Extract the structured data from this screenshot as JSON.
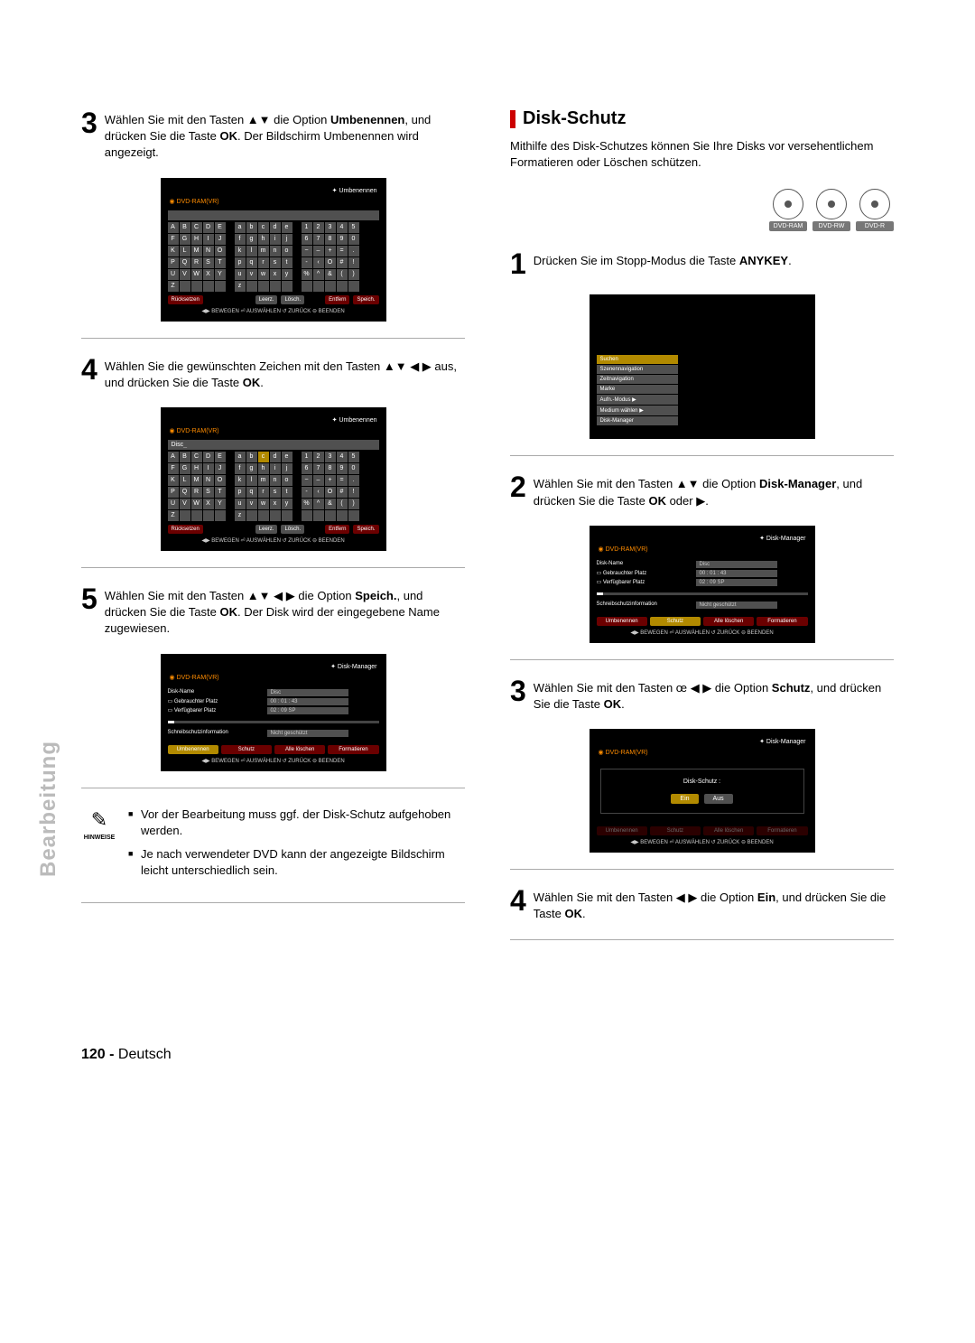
{
  "side_tab": "Bearbeitung",
  "page_footer": {
    "num": "120 -",
    "lang": "Deutsch"
  },
  "left": {
    "step3": {
      "num": "3",
      "text": "Wählen Sie mit den Tasten ▲▼ die Option <b>Umbenennen</b>, und drücken Sie die Taste <b>OK</b>. Der Bildschirm Umbenennen wird angezeigt."
    },
    "step4": {
      "num": "4",
      "text": "Wählen Sie die gewünschten Zeichen mit den Tasten ▲▼ ◀ ▶ aus, und drücken Sie die Taste <b>OK</b>."
    },
    "step5": {
      "num": "5",
      "text": "Wählen Sie mit den Tasten ▲▼ ◀ ▶ die Option <b>Speich.</b>, und drücken Sie die Taste <b>OK</b>. Der Disk wird der eingegebene Name zugewiesen."
    },
    "notes": {
      "label": "HINWEISE",
      "items": [
        "Vor der Bearbeitung muss ggf. der Disk-Schutz aufgehoben werden.",
        "Je nach verwendeter DVD kann der angezeigte Bildschirm leicht unterschiedlich sein."
      ]
    },
    "kb": {
      "title": "Umbenennen",
      "device": "DVD-RAM(VR)",
      "disc_label": "Disc",
      "caps": [
        "A",
        "B",
        "C",
        "D",
        "E",
        "F",
        "G",
        "H",
        "I",
        "J",
        "K",
        "L",
        "M",
        "N",
        "O",
        "P",
        "Q",
        "R",
        "S",
        "T",
        "U",
        "V",
        "W",
        "X",
        "Y",
        "Z",
        "",
        "",
        "",
        ""
      ],
      "low": [
        "a",
        "b",
        "c",
        "d",
        "e",
        "f",
        "g",
        "h",
        "i",
        "j",
        "k",
        "l",
        "m",
        "n",
        "o",
        "p",
        "q",
        "r",
        "s",
        "t",
        "u",
        "v",
        "w",
        "x",
        "y",
        "z",
        "",
        "",
        "",
        ""
      ],
      "num": [
        "1",
        "2",
        "3",
        "4",
        "5",
        "6",
        "7",
        "8",
        "9",
        "0",
        "~",
        "–",
        "+",
        "=",
        ".",
        "-",
        "‹",
        "O",
        "#",
        "!",
        "%",
        "^",
        "&",
        "(",
        ")",
        "",
        "",
        "",
        "",
        ""
      ],
      "btns": {
        "reset": "Rücksetzen",
        "space": "Leerz.",
        "delete": "Lösch.",
        "remove": "Entfern",
        "save": "Speich."
      },
      "help": "◀▶ BEWEGEN   ⏎ AUSWÄHLEN   ↺ ZURÜCK   ⊖ BEENDEN"
    },
    "dm": {
      "title": "Disk-Manager",
      "device": "DVD-RAM(VR)",
      "rows": {
        "name_lbl": "Disk-Name",
        "name_val": "Disc",
        "used_lbl": "Gebrauchter Platz",
        "used_val": "00 : 01 : 43",
        "avail_lbl": "Verfügbarer Platz",
        "avail_val": "02 : 09 SP",
        "prot_lbl": "Schreibschutzinformation",
        "prot_val": "Nicht geschützt"
      },
      "btns": {
        "rename": "Umbenennen",
        "protect": "Schutz",
        "delall": "Alle löschen",
        "format": "Formatieren"
      },
      "help": "◀▶ BEWEGEN   ⏎ AUSWÄHLEN   ↺ ZURÜCK   ⊖ BEENDEN"
    }
  },
  "right": {
    "heading": "Disk-Schutz",
    "intro": "Mithilfe des Disk-Schutzes können Sie Ihre Disks vor versehentlichem Formatieren oder Löschen schützen.",
    "discs": [
      "DVD-RAM",
      "DVD-RW",
      "DVD-R"
    ],
    "step1": {
      "num": "1",
      "text": "Drücken Sie im Stopp-Modus die Taste <b>ANYKEY</b>."
    },
    "menu": {
      "items": [
        "Suchen",
        "Szenennavigation",
        "Zeitnavigation",
        "Marke",
        "Aufn.-Modus",
        "Medium wählen",
        "Disk-Manager"
      ],
      "arrow_items": [
        4,
        5
      ]
    },
    "step2": {
      "num": "2",
      "text": "Wählen Sie mit den Tasten ▲▼ die Option <b>Disk-Manager</b>, und drücken Sie die Taste <b>OK</b> oder ▶."
    },
    "step3": {
      "num": "3",
      "text": "Wählen Sie mit den Tasten œ ◀ ▶ die Option <b>Schutz</b>, und drücken Sie die Taste <b>OK</b>."
    },
    "protect": {
      "title": "Disk-Schutz  :",
      "on": "Ein",
      "off": "Aus"
    },
    "step4": {
      "num": "4",
      "text": "Wählen Sie mit den Tasten ◀ ▶ die Option <b>Ein</b>, und drücken Sie die Taste <b>OK</b>."
    }
  }
}
